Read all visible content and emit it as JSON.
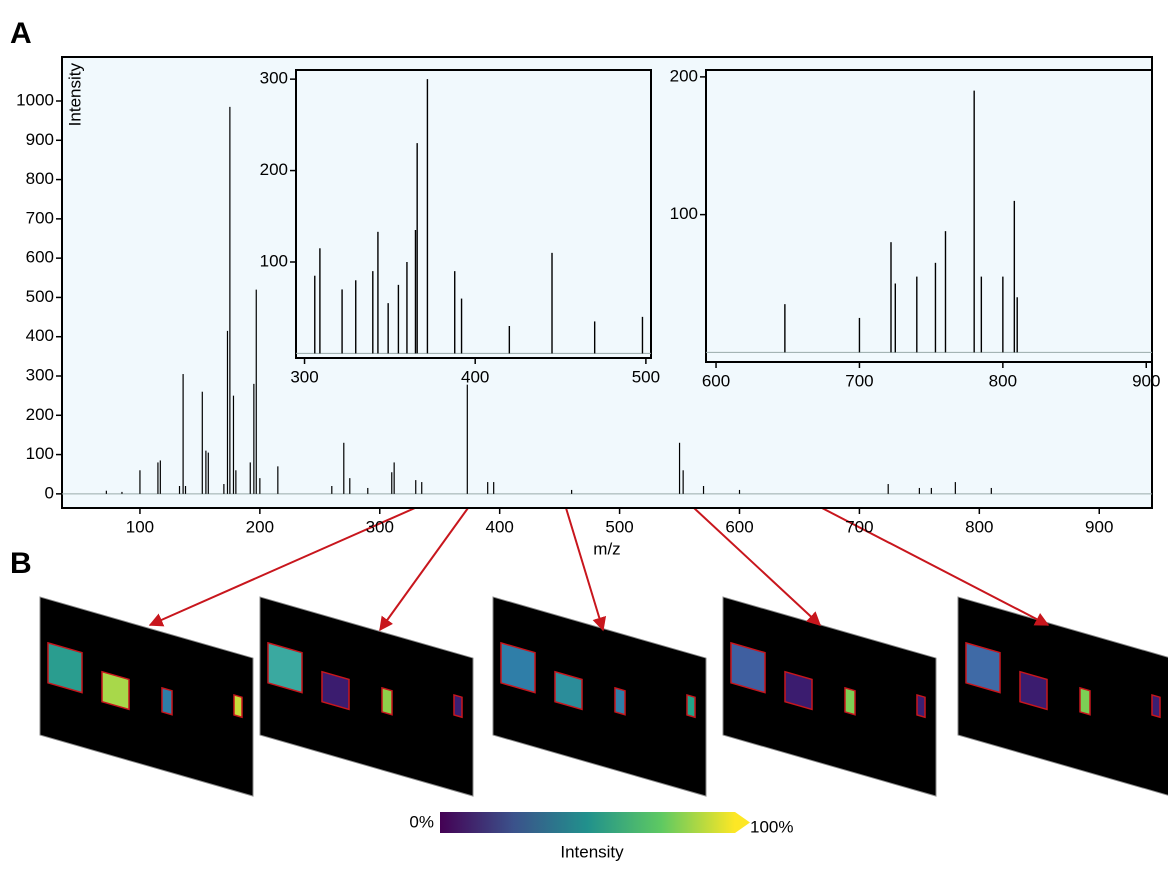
{
  "panels": {
    "a": "A",
    "b": "B"
  },
  "chart_data": [
    {
      "type": "stem",
      "xlabel": "m/z",
      "ylabel": "Intensity",
      "color": "#000000",
      "background": "#f1f9fd",
      "xlim": [
        35,
        944
      ],
      "ylim": [
        -36,
        1112
      ],
      "xticks": [
        100,
        200,
        300,
        400,
        500,
        600,
        700,
        800,
        900
      ],
      "yticks": [
        0,
        100,
        200,
        300,
        400,
        500,
        600,
        700,
        800,
        900,
        1000
      ],
      "x": [
        72,
        85,
        100,
        115,
        117,
        133,
        136,
        138,
        152,
        155,
        157,
        170,
        173,
        175,
        178,
        180,
        192,
        195,
        197,
        200,
        215,
        260,
        270,
        275,
        290,
        310,
        312,
        330,
        335,
        373,
        390,
        395,
        460,
        550,
        553,
        570,
        600,
        724,
        750,
        760,
        780,
        810
      ],
      "values": [
        8,
        5,
        60,
        80,
        85,
        20,
        305,
        20,
        260,
        110,
        105,
        25,
        415,
        985,
        250,
        60,
        80,
        280,
        520,
        40,
        70,
        20,
        130,
        40,
        15,
        55,
        80,
        35,
        30,
        278,
        30,
        30,
        10,
        130,
        60,
        20,
        10,
        25,
        15,
        15,
        30,
        15
      ]
    },
    {
      "type": "stem",
      "color": "#000000",
      "background": "#f1f9fd",
      "xlim": [
        295,
        503
      ],
      "ylim": [
        -5,
        310
      ],
      "xticks": [
        300,
        400,
        500
      ],
      "yticks": [
        100,
        200,
        300
      ],
      "x": [
        306,
        309,
        322,
        330,
        340,
        343,
        349,
        355,
        360,
        365,
        366,
        372,
        388,
        392,
        420,
        445,
        470,
        498
      ],
      "values": [
        85,
        115,
        70,
        80,
        90,
        133,
        55,
        75,
        100,
        135,
        230,
        300,
        90,
        60,
        30,
        110,
        35,
        40
      ]
    },
    {
      "type": "stem",
      "color": "#000000",
      "background": "#f1f9fd",
      "xlim": [
        593,
        904
      ],
      "ylim": [
        -7,
        205
      ],
      "xticks": [
        600,
        700,
        800,
        900
      ],
      "yticks": [
        100,
        200
      ],
      "x": [
        648,
        700,
        722,
        725,
        740,
        753,
        760,
        780,
        785,
        800,
        808,
        810
      ],
      "values": [
        35,
        25,
        80,
        50,
        55,
        65,
        88,
        190,
        55,
        55,
        110,
        40
      ]
    }
  ],
  "colorbar": {
    "ticks": [
      {
        "value": 0,
        "label": "0%"
      },
      {
        "value": 100,
        "label": "100%"
      }
    ],
    "label": "Intensity"
  }
}
